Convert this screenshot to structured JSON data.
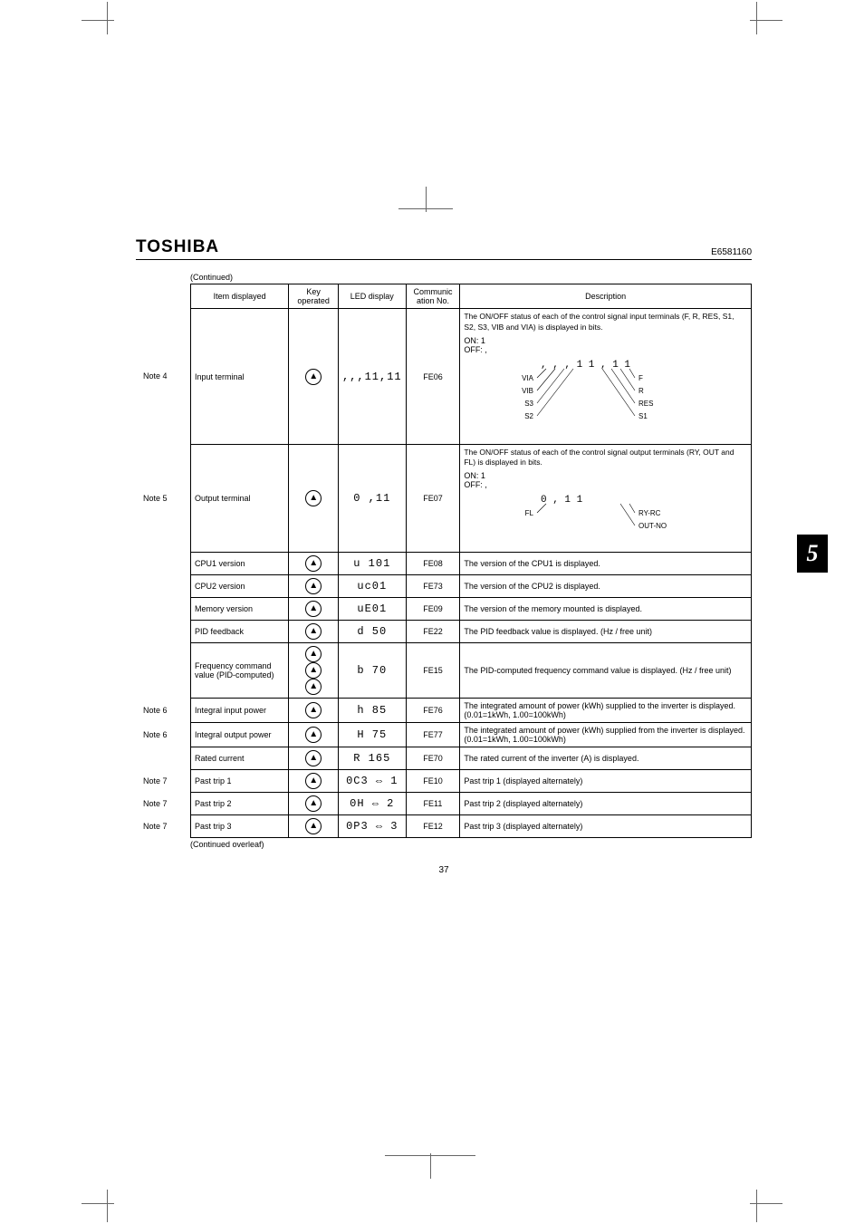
{
  "header": {
    "brand": "TOSHIBA",
    "docnum": "E6581160"
  },
  "continued_label": "(Continued)",
  "overleaf_label": "(Continued overleaf)",
  "page_number": "37",
  "chapter_tab": "5",
  "columns": {
    "item": "Item displayed",
    "key": "Key operated",
    "led": "LED display",
    "com": "Communic ation No.",
    "desc": "Description"
  },
  "rows": [
    {
      "note": "Note 4",
      "item": "Input terminal",
      "led": ",,,11,11",
      "com": "FE06",
      "desc_intro": "The ON/OFF status of each of the control signal input terminals (F, R, RES, S1, S2, S3, VIB and VIA) is displayed in bits.",
      "on": "ON: 1",
      "off": "OFF: ,",
      "labels_left": [
        "VIA",
        "VIB",
        "S3",
        "S2"
      ],
      "labels_right": [
        "F",
        "R",
        "RES",
        "S1"
      ],
      "seg_small": ", , , 1 1 , 1 1"
    },
    {
      "note": "Note 5",
      "item": "Output terminal",
      "led": "0 ,11",
      "com": "FE07",
      "desc_intro": "The ON/OFF status of each of the control signal output terminals (RY, OUT and FL) is displayed in bits.",
      "on": "ON: 1",
      "off": "OFF: ,",
      "labels_left": [
        "FL"
      ],
      "labels_right": [
        "RY-RC",
        "OUT-NO"
      ],
      "seg_small": "0     , 1 1"
    },
    {
      "item": "CPU1 version",
      "led": "u 101",
      "com": "FE08",
      "desc": "The version of the CPU1 is displayed."
    },
    {
      "item": "CPU2 version",
      "led": "uc01",
      "com": "FE73",
      "desc": "The version of the CPU2 is displayed."
    },
    {
      "item": "Memory version",
      "led": "uE01",
      "com": "FE09",
      "desc": "The version of the memory mounted is displayed."
    },
    {
      "item": "PID feedback",
      "led": "d  50",
      "com": "FE22",
      "desc": "The PID feedback value is displayed. (Hz / free unit)"
    },
    {
      "item": "Frequency command value (PID-computed)",
      "triple_key": true,
      "led": "b  70",
      "com": "FE15",
      "desc": "The PID-computed frequency command value is displayed. (Hz / free unit)"
    },
    {
      "note": "Note 6",
      "item": "Integral input power",
      "led": "h  85",
      "com": "FE76",
      "desc": "The integrated amount of power (kWh) supplied to the inverter is displayed.\n(0.01=1kWh, 1.00=100kWh)"
    },
    {
      "note": "Note 6",
      "item": "Integral output power",
      "led": "H  75",
      "com": "FE77",
      "desc": "The integrated amount of power (kWh) supplied from the inverter is displayed.\n(0.01=1kWh, 1.00=100kWh)"
    },
    {
      "item": "Rated current",
      "led": "R 165",
      "com": "FE70",
      "desc": "The rated current of the inverter (A) is displayed."
    },
    {
      "note": "Note 7",
      "item": "Past trip 1",
      "led": "0C3 ⇔ 1",
      "com": "FE10",
      "desc": "Past trip 1 (displayed alternately)"
    },
    {
      "note": "Note 7",
      "item": "Past trip 2",
      "led": "0H ⇔ 2",
      "com": "FE11",
      "desc": "Past trip 2 (displayed alternately)"
    },
    {
      "note": "Note 7",
      "item": "Past trip 3",
      "led": "0P3 ⇔ 3",
      "com": "FE12",
      "desc": "Past trip 3 (displayed alternately)"
    }
  ]
}
